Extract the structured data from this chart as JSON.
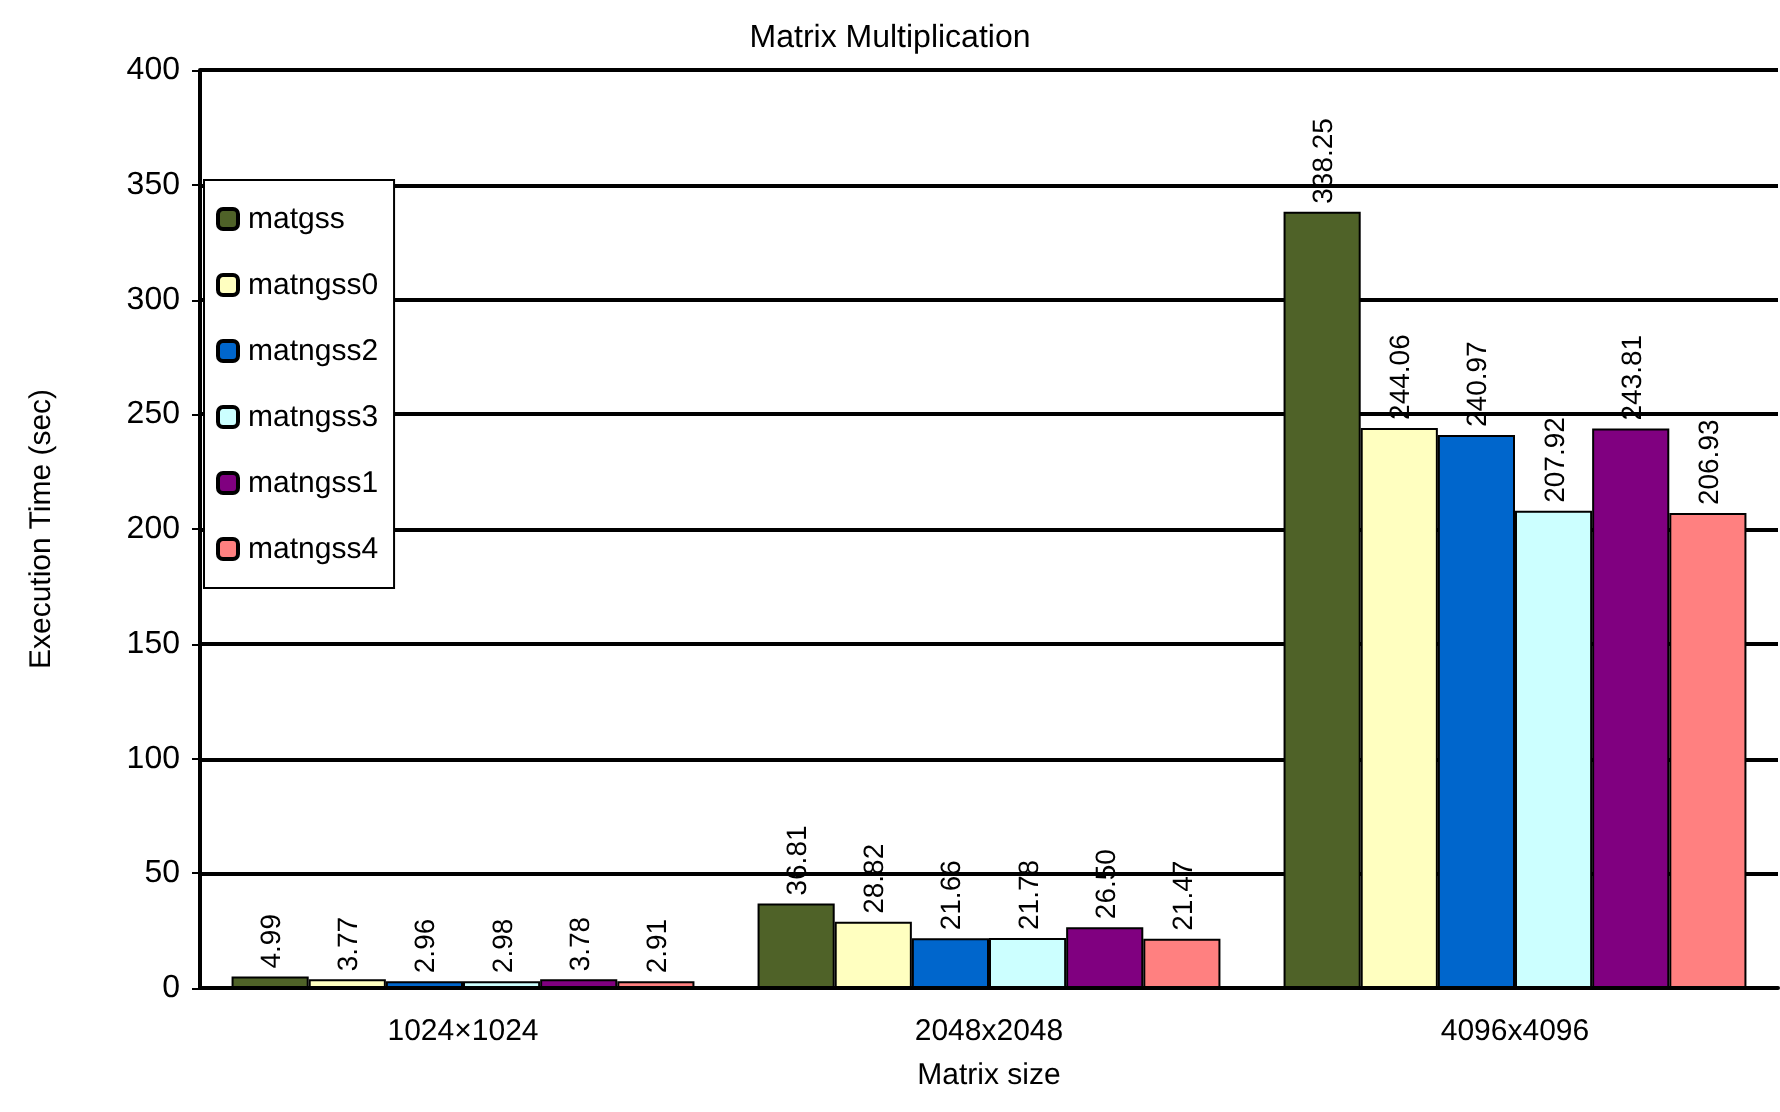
{
  "chart_data": {
    "type": "bar",
    "title": "Matrix Multiplication",
    "xlabel": "Matrix size",
    "ylabel": "Execution Time (sec)",
    "categories": [
      "1024×1024",
      "2048x2048",
      "4096x4096"
    ],
    "series": [
      {
        "name": "matgss",
        "color": "#4f6228",
        "values": [
          4.99,
          36.81,
          338.25
        ],
        "value_labels": [
          "4.99",
          "36.81",
          "338.25"
        ]
      },
      {
        "name": "matngss0",
        "color": "#ffffc0",
        "values": [
          3.77,
          28.82,
          244.06
        ],
        "value_labels": [
          "3.77",
          "28.82",
          "244.06"
        ]
      },
      {
        "name": "matngss2",
        "color": "#0066cc",
        "values": [
          2.96,
          21.66,
          240.97
        ],
        "value_labels": [
          "2.96",
          "21.66",
          "240.97"
        ]
      },
      {
        "name": "matngss3",
        "color": "#ccffff",
        "values": [
          2.98,
          21.78,
          207.92
        ],
        "value_labels": [
          "2.98",
          "21.78",
          "207.92"
        ]
      },
      {
        "name": "matngss1",
        "color": "#800080",
        "values": [
          3.78,
          26.5,
          243.81
        ],
        "value_labels": [
          "3.78",
          "26.50",
          "243.81"
        ]
      },
      {
        "name": "matngss4",
        "color": "#ff8080",
        "values": [
          2.91,
          21.47,
          206.93
        ],
        "value_labels": [
          "2.91",
          "21.47",
          "206.93"
        ]
      }
    ],
    "ylim": [
      0,
      400
    ],
    "yticks": [
      0,
      50,
      100,
      150,
      200,
      250,
      300,
      350,
      400
    ],
    "grid": "y",
    "legend": "top left"
  }
}
